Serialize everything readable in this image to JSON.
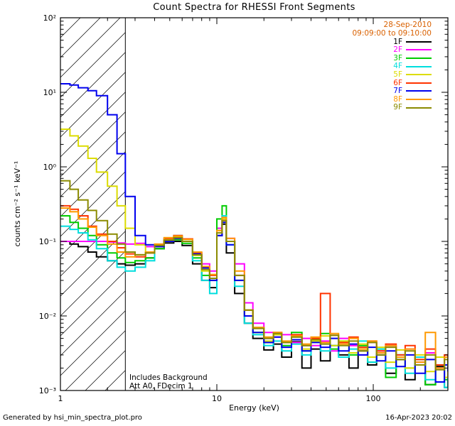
{
  "legend": {
    "date": "28-Sep-2010",
    "time_range": "09:09:00 to 09:10:00",
    "accent_color": "#D96000"
  },
  "annotations": {
    "line1": "Includes Background",
    "line2": "Att A0, FDecim 1"
  },
  "footer": {
    "left": "Generated by hsi_min_spectra_plot.pro",
    "right": "16-Apr-2023 20:02"
  },
  "chart_data": {
    "type": "line",
    "title": "Count Spectra for RHESSI Front Segments",
    "xlabel": "Energy (keV)",
    "ylabel": "counts cm⁻² s⁻¹ keV⁻¹",
    "xscale": "log",
    "yscale": "log",
    "xlim": [
      1,
      300
    ],
    "ylim": [
      0.001,
      100
    ],
    "grid": false,
    "legend_position": "top-right",
    "step_mode": true,
    "hatch_region": {
      "x0": 1,
      "x1": 2.6
    },
    "x_ticks": [
      {
        "value": 1,
        "label": "1"
      },
      {
        "value": 10,
        "label": "10"
      },
      {
        "value": 100,
        "label": "100"
      }
    ],
    "y_ticks": [
      {
        "value": 100,
        "label": "10²"
      },
      {
        "value": 10,
        "label": "10¹"
      },
      {
        "value": 1,
        "label": "10⁰"
      },
      {
        "value": 0.1,
        "label": "10⁻¹"
      },
      {
        "value": 0.01,
        "label": "10⁻²"
      },
      {
        "value": 0.001,
        "label": "10⁻³"
      }
    ],
    "energies_keV": [
      1.0,
      1.15,
      1.3,
      1.5,
      1.7,
      2.0,
      2.3,
      2.6,
      3.0,
      3.5,
      4.0,
      4.6,
      5.3,
      6.0,
      7.0,
      8.0,
      9.0,
      10.0,
      10.8,
      11.5,
      13,
      15,
      17,
      20,
      23,
      26,
      30,
      35,
      40,
      46,
      53,
      60,
      70,
      80,
      92,
      105,
      120,
      140,
      160,
      185,
      215,
      250,
      285,
      300
    ],
    "series": [
      {
        "name": "1F",
        "color": "#000000",
        "values": [
          0.1,
          0.092,
          0.085,
          0.072,
          0.062,
          0.055,
          0.05,
          0.048,
          0.05,
          0.06,
          0.08,
          0.095,
          0.1,
          0.088,
          0.05,
          0.03,
          0.024,
          0.12,
          0.17,
          0.07,
          0.02,
          0.008,
          0.005,
          0.0035,
          0.0042,
          0.0028,
          0.0045,
          0.002,
          0.0036,
          0.0025,
          0.004,
          0.003,
          0.002,
          0.0034,
          0.0022,
          0.003,
          0.0017,
          0.0026,
          0.0014,
          0.0028,
          0.0012,
          0.0021,
          0.0011,
          0.0016
        ]
      },
      {
        "name": "2F",
        "color": "#FF00FF",
        "values": [
          0.1,
          0.1,
          0.1,
          0.1,
          0.1,
          0.098,
          0.095,
          0.092,
          0.094,
          0.085,
          0.09,
          0.105,
          0.11,
          0.1,
          0.07,
          0.05,
          0.04,
          0.15,
          0.2,
          0.11,
          0.05,
          0.015,
          0.008,
          0.006,
          0.0052,
          0.0056,
          0.0044,
          0.005,
          0.004,
          0.0046,
          0.0034,
          0.005,
          0.004,
          0.003,
          0.0044,
          0.0034,
          0.004,
          0.0028,
          0.0036,
          0.0024,
          0.0032,
          0.002,
          0.0028,
          0.0022
        ]
      },
      {
        "name": "3F",
        "color": "#00CC00",
        "values": [
          0.22,
          0.18,
          0.15,
          0.12,
          0.09,
          0.07,
          0.06,
          0.052,
          0.055,
          0.06,
          0.08,
          0.1,
          0.105,
          0.094,
          0.06,
          0.035,
          0.03,
          0.2,
          0.3,
          0.1,
          0.03,
          0.01,
          0.006,
          0.0044,
          0.0056,
          0.004,
          0.006,
          0.0034,
          0.0046,
          0.0058,
          0.0036,
          0.0046,
          0.003,
          0.004,
          0.0024,
          0.0036,
          0.0015,
          0.003,
          0.002,
          0.0026,
          0.0012,
          0.0022,
          0.0014,
          0.0011
        ]
      },
      {
        "name": "4F",
        "color": "#00DEDE",
        "values": [
          0.16,
          0.145,
          0.13,
          0.105,
          0.08,
          0.055,
          0.045,
          0.04,
          0.045,
          0.055,
          0.09,
          0.11,
          0.12,
          0.1,
          0.055,
          0.03,
          0.02,
          0.13,
          0.22,
          0.09,
          0.025,
          0.008,
          0.0056,
          0.004,
          0.0046,
          0.0034,
          0.0042,
          0.003,
          0.0046,
          0.0034,
          0.004,
          0.0028,
          0.0036,
          0.0046,
          0.0024,
          0.0036,
          0.002,
          0.003,
          0.0017,
          0.0028,
          0.0014,
          0.0022,
          0.0011,
          0.0018
        ]
      },
      {
        "name": "5F",
        "color": "#DCDC00",
        "values": [
          3.2,
          2.6,
          1.9,
          1.3,
          0.85,
          0.55,
          0.3,
          0.15,
          0.09,
          0.07,
          0.085,
          0.105,
          0.115,
          0.1,
          0.065,
          0.04,
          0.03,
          0.14,
          0.2,
          0.1,
          0.03,
          0.01,
          0.006,
          0.0046,
          0.0056,
          0.0044,
          0.0052,
          0.0036,
          0.0046,
          0.0054,
          0.004,
          0.0046,
          0.0032,
          0.0042,
          0.0028,
          0.0038,
          0.0024,
          0.0035,
          0.002,
          0.003,
          0.0018,
          0.0028,
          0.0015,
          0.0021
        ]
      },
      {
        "name": "6F",
        "color": "#FF3300",
        "values": [
          0.3,
          0.27,
          0.22,
          0.16,
          0.125,
          0.1,
          0.082,
          0.068,
          0.062,
          0.07,
          0.09,
          0.11,
          0.12,
          0.108,
          0.07,
          0.045,
          0.035,
          0.13,
          0.19,
          0.1,
          0.035,
          0.012,
          0.007,
          0.005,
          0.006,
          0.0044,
          0.0056,
          0.004,
          0.005,
          0.02,
          0.0055,
          0.0044,
          0.0052,
          0.0038,
          0.0046,
          0.0034,
          0.0042,
          0.003,
          0.004,
          0.0026,
          0.0036,
          0.0022,
          0.003,
          0.0026
        ]
      },
      {
        "name": "7F",
        "color": "#0000EE",
        "values": [
          13.0,
          12.5,
          11.5,
          10.5,
          9.0,
          5.0,
          1.5,
          0.4,
          0.12,
          0.09,
          0.085,
          0.1,
          0.11,
          0.1,
          0.068,
          0.044,
          0.03,
          0.12,
          0.18,
          0.09,
          0.03,
          0.01,
          0.006,
          0.0044,
          0.0052,
          0.0038,
          0.0048,
          0.0034,
          0.0044,
          0.0038,
          0.005,
          0.0034,
          0.0042,
          0.003,
          0.0038,
          0.0025,
          0.0034,
          0.0021,
          0.003,
          0.0017,
          0.0026,
          0.0013,
          0.0022,
          0.0018
        ]
      },
      {
        "name": "8F",
        "color": "#FF9900",
        "values": [
          0.28,
          0.25,
          0.2,
          0.155,
          0.12,
          0.092,
          0.072,
          0.062,
          0.066,
          0.072,
          0.092,
          0.112,
          0.118,
          0.106,
          0.072,
          0.046,
          0.036,
          0.14,
          0.21,
          0.11,
          0.04,
          0.012,
          0.007,
          0.0052,
          0.006,
          0.0046,
          0.0054,
          0.0042,
          0.0052,
          0.0044,
          0.0058,
          0.0042,
          0.005,
          0.0036,
          0.0046,
          0.0032,
          0.004,
          0.0028,
          0.0036,
          0.0024,
          0.006,
          0.002,
          0.0028,
          0.0022
        ]
      },
      {
        "name": "9F",
        "color": "#8B8B00",
        "values": [
          0.65,
          0.5,
          0.36,
          0.26,
          0.19,
          0.125,
          0.092,
          0.072,
          0.066,
          0.07,
          0.088,
          0.104,
          0.112,
          0.1,
          0.066,
          0.042,
          0.032,
          0.13,
          0.19,
          0.1,
          0.035,
          0.012,
          0.0068,
          0.005,
          0.0058,
          0.0044,
          0.0052,
          0.004,
          0.0048,
          0.0042,
          0.0055,
          0.004,
          0.0046,
          0.0034,
          0.0044,
          0.003,
          0.0038,
          0.0026,
          0.0034,
          0.0022,
          0.003,
          0.0019,
          0.0026,
          0.0021
        ]
      }
    ]
  }
}
